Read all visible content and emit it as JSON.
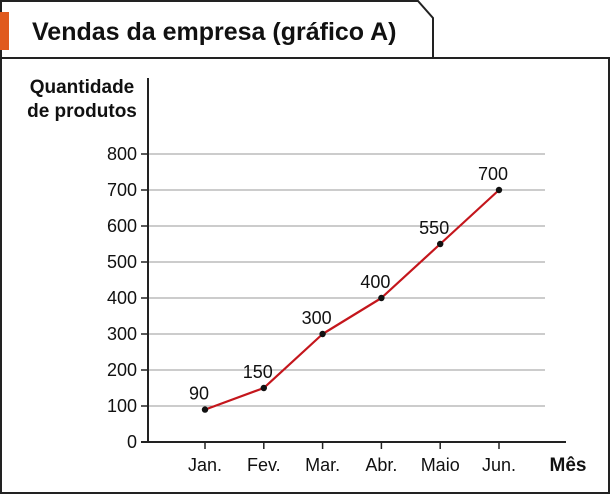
{
  "chart_data": {
    "type": "line",
    "title": "Vendas da empresa (gráfico A)",
    "ylabel_lines": [
      "Quantidade",
      "de produtos"
    ],
    "xlabel": "Mês",
    "categories": [
      "Jan.",
      "Fev.",
      "Mar.",
      "Abr.",
      "Maio",
      "Jun."
    ],
    "series": [
      {
        "values": [
          90,
          150,
          300,
          400,
          550,
          700
        ],
        "color": "#c4161c"
      }
    ],
    "data_labels": [
      "90",
      "150",
      "300",
      "400",
      "550",
      "700"
    ],
    "yticks": [
      0,
      100,
      200,
      300,
      400,
      500,
      600,
      700,
      800
    ],
    "ylim": [
      0,
      800
    ],
    "grid": true,
    "colors": {
      "accent": "#e05a1e",
      "frame": "#222222",
      "grid": "#9a9a9a",
      "line": "#c4161c",
      "marker": "#111111"
    }
  }
}
